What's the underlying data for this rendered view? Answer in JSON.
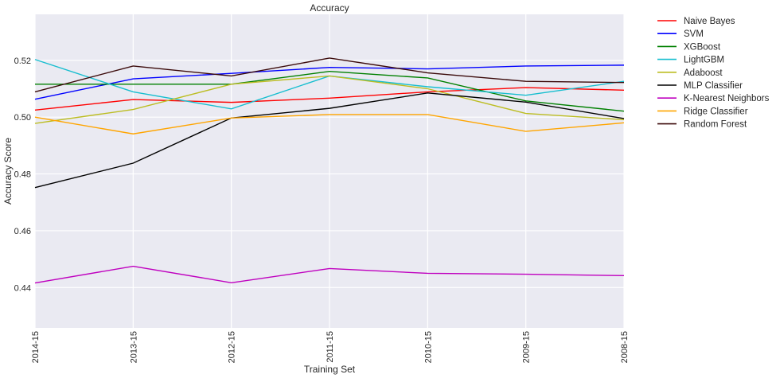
{
  "chart_data": {
    "type": "line",
    "title": "Accuracy",
    "xlabel": "Training Set",
    "ylabel": "Accuracy Score",
    "categories": [
      "2014-15",
      "2013-15",
      "2012-15",
      "2011-15",
      "2010-15",
      "2009-15",
      "2008-15"
    ],
    "ylim": [
      0.4258,
      0.5362
    ],
    "yticks": [
      0.44,
      0.46,
      0.48,
      0.5,
      0.52
    ],
    "ytick_labels": [
      "0.44",
      "0.46",
      "0.48",
      "0.50",
      "0.52"
    ],
    "grid": true,
    "legend_placement": "outside-top-right",
    "background": "#eaeaf2",
    "series": [
      {
        "name": "Naive Bayes",
        "color": "#ff0000",
        "values": [
          0.5025,
          0.5062,
          0.5052,
          0.5067,
          0.5089,
          0.5104,
          0.5095
        ]
      },
      {
        "name": "SVM",
        "color": "#0000ff",
        "values": [
          0.5063,
          0.5135,
          0.5154,
          0.5175,
          0.517,
          0.518,
          0.5183
        ]
      },
      {
        "name": "XGBoost",
        "color": "#008000",
        "values": [
          0.5116,
          0.5116,
          0.5116,
          0.5161,
          0.5138,
          0.5057,
          0.5021
        ]
      },
      {
        "name": "LightGBM",
        "color": "#17becf",
        "values": [
          0.5203,
          0.5089,
          0.5029,
          0.5145,
          0.5107,
          0.5077,
          0.5126
        ]
      },
      {
        "name": "Adaboost",
        "color": "#bcbd22",
        "values": [
          0.4978,
          0.5027,
          0.5116,
          0.5145,
          0.51,
          0.5013,
          0.4991
        ]
      },
      {
        "name": "MLP Classifier",
        "color": "#000000",
        "values": [
          0.4752,
          0.4838,
          0.4997,
          0.5031,
          0.5085,
          0.5053,
          0.4995
        ]
      },
      {
        "name": "K-Nearest Neighbors",
        "color": "#bf00bf",
        "values": [
          0.4416,
          0.4475,
          0.4417,
          0.4467,
          0.445,
          0.4447,
          0.4442
        ]
      },
      {
        "name": "Ridge Classifier",
        "color": "#ffa500",
        "values": [
          0.5,
          0.4941,
          0.4997,
          0.5009,
          0.5009,
          0.495,
          0.498
        ]
      },
      {
        "name": "Random Forest",
        "color": "#3b0a0a",
        "values": [
          0.5089,
          0.518,
          0.5145,
          0.5208,
          0.5156,
          0.5126,
          0.5122
        ]
      }
    ]
  }
}
